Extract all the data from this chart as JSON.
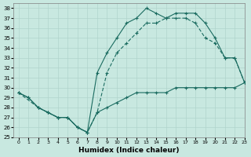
{
  "xlabel": "Humidex (Indice chaleur)",
  "ylabel": "",
  "background_color": "#c8e8e0",
  "grid_color": "#b0d4cc",
  "line_color": "#1a6b60",
  "xlim": [
    -0.5,
    23
  ],
  "ylim": [
    25,
    38.5
  ],
  "xticks": [
    0,
    1,
    2,
    3,
    4,
    5,
    6,
    7,
    8,
    9,
    10,
    11,
    12,
    13,
    14,
    15,
    16,
    17,
    18,
    19,
    20,
    21,
    22,
    23
  ],
  "yticks": [
    25,
    26,
    27,
    28,
    29,
    30,
    31,
    32,
    33,
    34,
    35,
    36,
    37,
    38
  ],
  "curve_top": {
    "x": [
      0,
      1,
      2,
      3,
      4,
      5,
      6,
      7,
      8,
      9,
      10,
      11,
      12,
      13,
      14,
      15,
      16,
      17,
      18,
      19,
      20,
      21,
      22,
      23
    ],
    "y": [
      29.5,
      29.0,
      28.0,
      27.5,
      27.0,
      27.0,
      26.0,
      25.5,
      31.5,
      33.5,
      35.0,
      36.5,
      37.0,
      38.0,
      37.5,
      37.0,
      37.5,
      37.5,
      37.5,
      36.5,
      35.0,
      33.0,
      33.0,
      30.5
    ]
  },
  "curve_bottom": {
    "x": [
      0,
      1,
      2,
      3,
      4,
      5,
      6,
      7,
      8,
      9,
      10,
      11,
      12,
      13,
      14,
      15,
      16,
      17,
      18,
      19,
      20,
      21,
      22,
      23
    ],
    "y": [
      29.5,
      29.0,
      28.0,
      27.5,
      27.0,
      27.0,
      26.0,
      25.5,
      27.5,
      28.0,
      28.5,
      29.0,
      29.5,
      29.5,
      29.5,
      29.5,
      30.0,
      30.0,
      30.0,
      30.0,
      30.0,
      30.0,
      30.0,
      30.5
    ]
  },
  "curve_mid": {
    "x": [
      0,
      2,
      3,
      4,
      5,
      6,
      7,
      8,
      9,
      10,
      11,
      12,
      13,
      14,
      15,
      16,
      17,
      18,
      19,
      20,
      21,
      22,
      23
    ],
    "y": [
      29.5,
      28.0,
      27.5,
      27.0,
      27.0,
      26.0,
      25.5,
      27.5,
      31.5,
      33.5,
      34.5,
      35.5,
      36.5,
      36.5,
      37.0,
      37.0,
      37.0,
      36.5,
      35.0,
      34.5,
      33.0,
      33.0,
      30.5
    ]
  }
}
